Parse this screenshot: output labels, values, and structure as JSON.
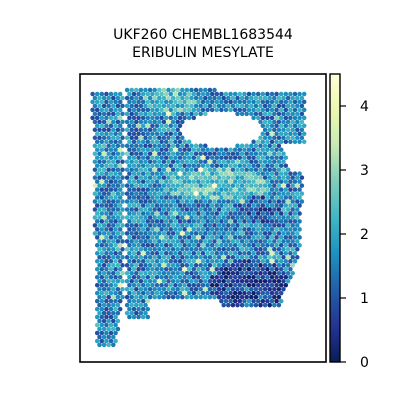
{
  "chart_data": {
    "type": "heatmap",
    "title_lines": [
      "UKF260 CHEMBL1683544",
      "ERIBULIN MESYLATE"
    ],
    "xlabel": "",
    "ylabel": "",
    "colorbar": {
      "ticks": [
        0,
        1,
        2,
        3,
        4
      ],
      "tick_labels": [
        "0",
        "1",
        "2",
        "3",
        "4"
      ],
      "range": [
        0,
        4.5
      ],
      "colormap": "YlGnBu",
      "colors": [
        "#081d58",
        "#253494",
        "#225ea8",
        "#1d91c0",
        "#41b6c4",
        "#7fcdbb",
        "#c7e9b4",
        "#edf8b1",
        "#ffffd9"
      ]
    },
    "grid": false,
    "spot_pattern": "hexagonal",
    "typical_value": 2.0,
    "regions": [
      {
        "name": "bright upper-middle band",
        "level": 3.0
      },
      {
        "name": "dark lower-right patch",
        "level": 0.6
      },
      {
        "name": "tissue gap (no spots)",
        "level": null
      }
    ]
  }
}
